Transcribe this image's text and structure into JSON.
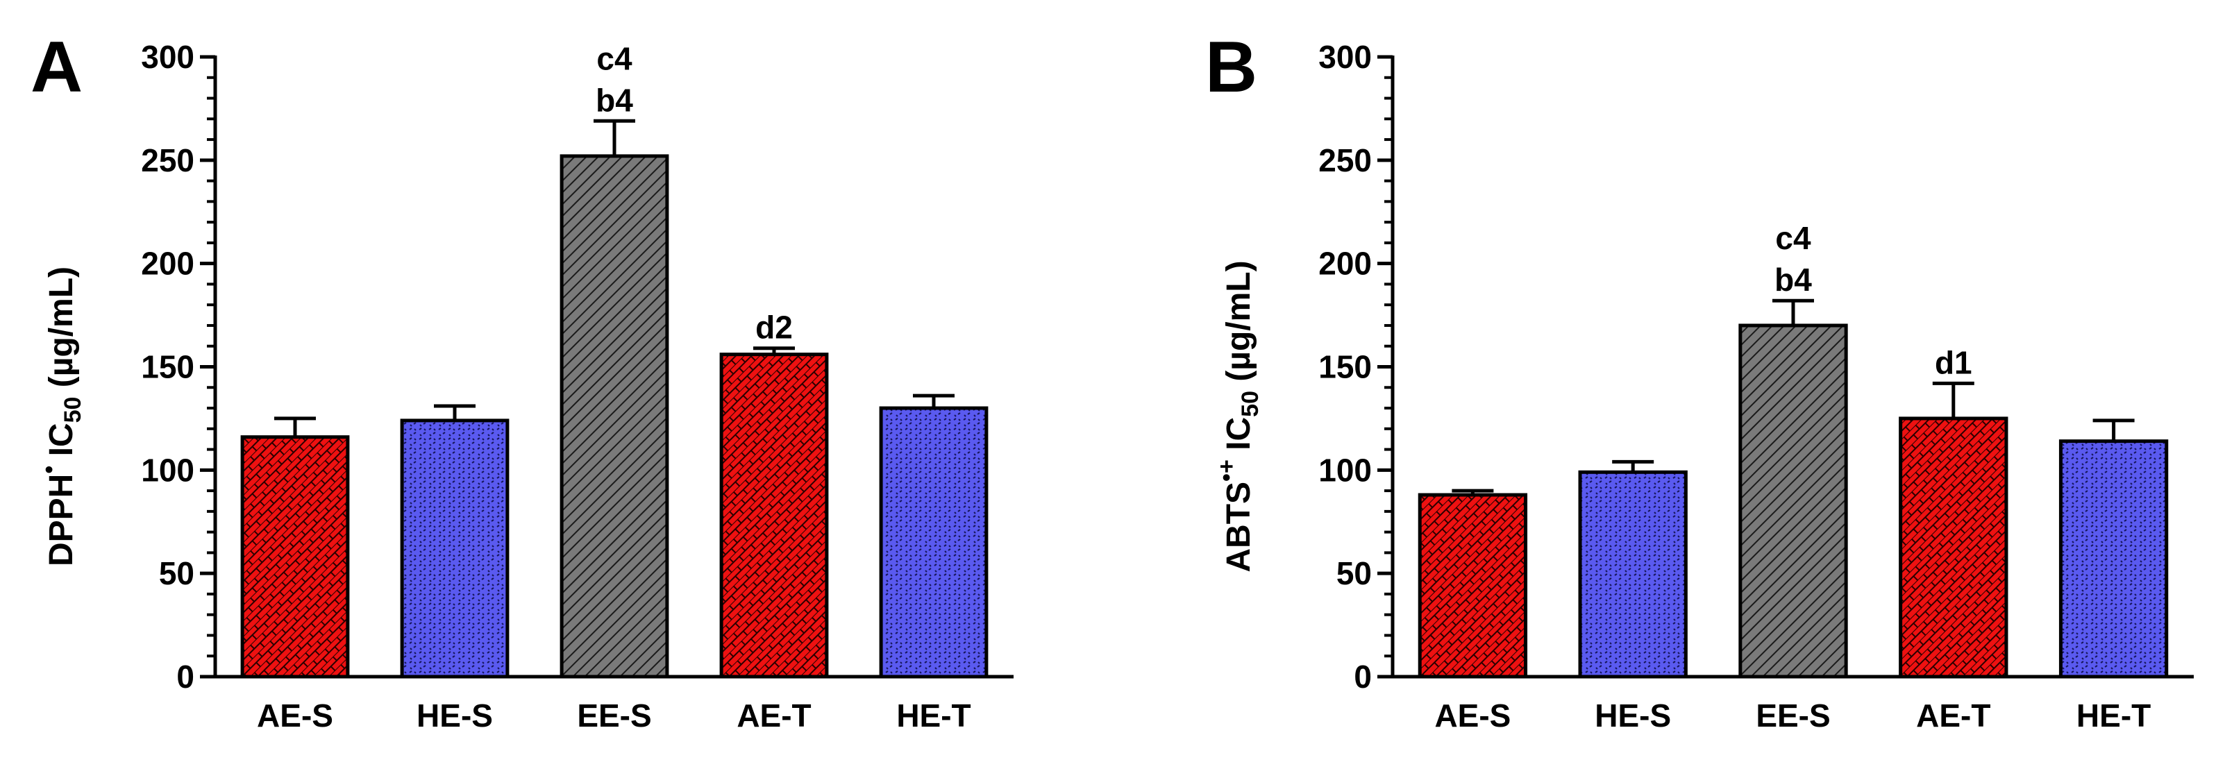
{
  "chart_data": [
    {
      "type": "bar",
      "panel": "A",
      "ylabel_main": "DPPH",
      "ylabel_radical": "•",
      "ylabel_ic": "IC",
      "ylabel_sub": "50",
      "ylabel_unit": "(µg/mL)",
      "ylim": [
        0,
        300
      ],
      "yticks": [
        "0",
        "50",
        "100",
        "150",
        "200",
        "250",
        "300"
      ],
      "categories": [
        "AE-S",
        "HE-S",
        "EE-S",
        "AE-T",
        "HE-T"
      ],
      "values": [
        116,
        124,
        252,
        156,
        130
      ],
      "errors": [
        9,
        7,
        17,
        3,
        6
      ],
      "patterns": [
        "brick",
        "dots",
        "diag",
        "brick",
        "dots"
      ],
      "annotations": [
        [],
        [],
        [
          "c4",
          "b4"
        ],
        [
          "d2"
        ],
        []
      ]
    },
    {
      "type": "bar",
      "panel": "B",
      "ylabel_main": "ABTS",
      "ylabel_radical": "•+",
      "ylabel_ic": "IC",
      "ylabel_sub": "50",
      "ylabel_unit": "(µg/mL)",
      "ylim": [
        0,
        300
      ],
      "yticks": [
        "0",
        "50",
        "100",
        "150",
        "200",
        "250",
        "300"
      ],
      "categories": [
        "AE-S",
        "HE-S",
        "EE-S",
        "AE-T",
        "HE-T"
      ],
      "values": [
        88,
        99,
        170,
        125,
        114
      ],
      "errors": [
        2,
        5,
        12,
        17,
        10
      ],
      "patterns": [
        "brick",
        "dots",
        "diag",
        "brick",
        "dots"
      ],
      "annotations": [
        [],
        [],
        [
          "c4",
          "b4"
        ],
        [
          "d1"
        ],
        []
      ]
    }
  ],
  "colors": {
    "brick": "#ee1111",
    "dots": "#5555ee",
    "diag": "#777777",
    "axis": "#000000"
  }
}
